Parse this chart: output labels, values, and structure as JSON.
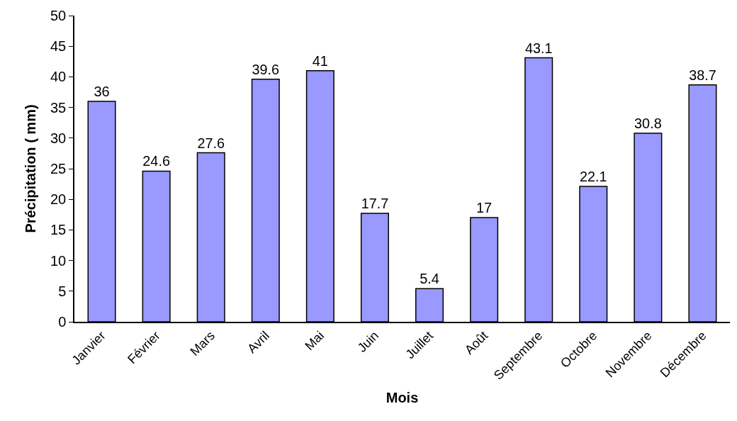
{
  "chart_data": {
    "type": "bar",
    "xlabel": "Mois",
    "ylabel": "Précipitation ( mm)",
    "categories": [
      "Janvier",
      "Février",
      "Mars",
      "Avril",
      "Mai",
      "Juin",
      "Juillet",
      "Août",
      "Septembre",
      "Octobre",
      "Novembre",
      "Décembre"
    ],
    "values": [
      36,
      24.6,
      27.6,
      39.6,
      41,
      17.7,
      5.4,
      17,
      43.1,
      22.1,
      30.8,
      38.7
    ],
    "color": "#9999ff",
    "ylim": [
      0,
      50
    ],
    "yticks": [
      0,
      5,
      10,
      15,
      20,
      25,
      30,
      35,
      40,
      45,
      50
    ],
    "data_labels": true
  }
}
